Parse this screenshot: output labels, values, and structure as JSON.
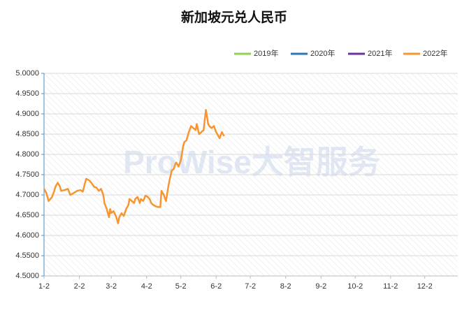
{
  "chart_data": {
    "type": "line",
    "title": "新加坡元兑人民币",
    "watermark": "ProWise大智服务",
    "xlim": [
      2,
      365
    ],
    "xticks": [
      {
        "value": 2,
        "label": "1-2"
      },
      {
        "value": 33,
        "label": "2-2"
      },
      {
        "value": 61,
        "label": "3-2"
      },
      {
        "value": 92,
        "label": "4-2"
      },
      {
        "value": 122,
        "label": "5-2"
      },
      {
        "value": 153,
        "label": "6-2"
      },
      {
        "value": 183,
        "label": "7-2"
      },
      {
        "value": 214,
        "label": "8-2"
      },
      {
        "value": 245,
        "label": "9-2"
      },
      {
        "value": 275,
        "label": "10-2"
      },
      {
        "value": 306,
        "label": "11-2"
      },
      {
        "value": 336,
        "label": "12-2"
      }
    ],
    "ylim": [
      4.5,
      5.0
    ],
    "yticks": [
      {
        "value": 4.5,
        "label": "4.5000"
      },
      {
        "value": 4.55,
        "label": "4.5500"
      },
      {
        "value": 4.6,
        "label": "4.6000"
      },
      {
        "value": 4.65,
        "label": "4.6500"
      },
      {
        "value": 4.7,
        "label": "4.7000"
      },
      {
        "value": 4.75,
        "label": "4.7500"
      },
      {
        "value": 4.8,
        "label": "4.8000"
      },
      {
        "value": 4.85,
        "label": "4.8500"
      },
      {
        "value": 4.9,
        "label": "4.9000"
      },
      {
        "value": 4.95,
        "label": "4.9500"
      },
      {
        "value": 5.0,
        "label": "5.0000"
      }
    ],
    "grid": true,
    "legend": "top-right",
    "series": [
      {
        "name": "2019年",
        "color": "#92d050",
        "x": [],
        "values": []
      },
      {
        "name": "2020年",
        "color": "#2e75b6",
        "x": [],
        "values": []
      },
      {
        "name": "2021年",
        "color": "#7030a0",
        "x": [],
        "values": []
      },
      {
        "name": "2022年",
        "color": "#f79530",
        "x": [
          2,
          4,
          6,
          9,
          11,
          12,
          14,
          16,
          17,
          20,
          23,
          25,
          27,
          31,
          34,
          36,
          38,
          39,
          42,
          44,
          46,
          48,
          50,
          52,
          54,
          55,
          57,
          59,
          60,
          61,
          63,
          65,
          67,
          68,
          70,
          72,
          74,
          76,
          77,
          79,
          81,
          82,
          84,
          86,
          87,
          89,
          91,
          93,
          95,
          96,
          98,
          100,
          102,
          104,
          105,
          107,
          109,
          111,
          112,
          114,
          116,
          117,
          118,
          120,
          122,
          124,
          125,
          127,
          129,
          131,
          133,
          135,
          136,
          138,
          140,
          142,
          144,
          146,
          147,
          149,
          151,
          153,
          155,
          156,
          158,
          160
        ],
        "values": [
          4.715,
          4.705,
          4.685,
          4.695,
          4.71,
          4.72,
          4.73,
          4.72,
          4.71,
          4.712,
          4.715,
          4.7,
          4.703,
          4.71,
          4.712,
          4.708,
          4.73,
          4.74,
          4.735,
          4.728,
          4.72,
          4.718,
          4.71,
          4.715,
          4.7,
          4.68,
          4.665,
          4.645,
          4.665,
          4.655,
          4.66,
          4.648,
          4.63,
          4.645,
          4.655,
          4.648,
          4.665,
          4.675,
          4.69,
          4.685,
          4.68,
          4.69,
          4.695,
          4.68,
          4.69,
          4.685,
          4.698,
          4.695,
          4.688,
          4.68,
          4.675,
          4.672,
          4.67,
          4.67,
          4.71,
          4.7,
          4.685,
          4.72,
          4.735,
          4.76,
          4.765,
          4.775,
          4.78,
          4.77,
          4.785,
          4.82,
          4.83,
          4.835,
          4.855,
          4.87,
          4.865,
          4.86,
          4.875,
          4.85,
          4.855,
          4.86,
          4.91,
          4.875,
          4.87,
          4.865,
          4.87,
          4.855,
          4.845,
          4.84,
          4.855,
          4.845
        ]
      }
    ]
  }
}
